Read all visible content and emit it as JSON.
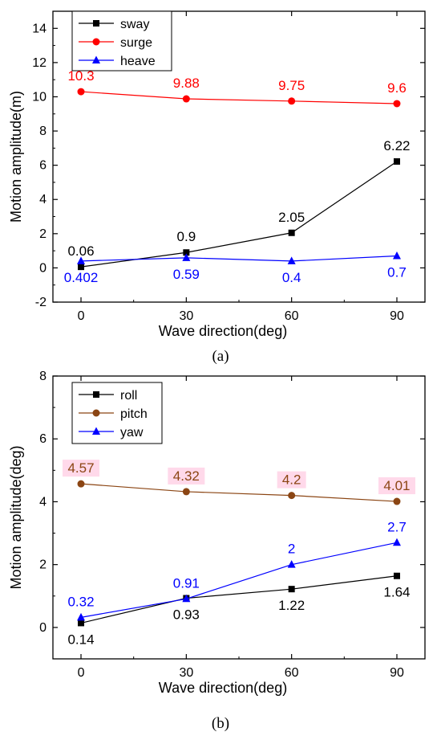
{
  "chart_data": [
    {
      "type": "line",
      "panel": "(a)",
      "xlabel": "Wave direction(deg)",
      "ylabel": "Motion amplitude(m)",
      "x": [
        0,
        30,
        60,
        90
      ],
      "xlim": [
        -8,
        98
      ],
      "ylim": [
        -2,
        15
      ],
      "xticks": [
        0,
        30,
        60,
        90
      ],
      "yticks": [
        -2,
        0,
        2,
        4,
        6,
        8,
        10,
        12,
        14
      ],
      "legend_position": "top-left",
      "series": [
        {
          "name": "sway",
          "values": [
            0.06,
            0.9,
            2.05,
            6.22
          ],
          "labels": [
            "0.06",
            "0.9",
            "2.05",
            "6.22"
          ],
          "color": "#000000",
          "marker": "square",
          "label_side": "above"
        },
        {
          "name": "surge",
          "values": [
            10.3,
            9.88,
            9.75,
            9.6
          ],
          "labels": [
            "10.3",
            "9.88",
            "9.75",
            "9.6"
          ],
          "color": "#ff0000",
          "marker": "circle",
          "label_side": "above"
        },
        {
          "name": "heave",
          "values": [
            0.402,
            0.59,
            0.4,
            0.7
          ],
          "labels": [
            "0.402",
            "0.59",
            "0.4",
            "0.7"
          ],
          "color": "#0000ff",
          "marker": "triangle",
          "label_side": "below"
        }
      ]
    },
    {
      "type": "line",
      "panel": "(b)",
      "xlabel": "Wave direction(deg)",
      "ylabel": "Motion amplitude(deg)",
      "x": [
        0,
        30,
        60,
        90
      ],
      "xlim": [
        -8,
        98
      ],
      "ylim": [
        -1,
        8
      ],
      "xticks": [
        0,
        30,
        60,
        90
      ],
      "yticks": [
        0,
        2,
        4,
        6,
        8
      ],
      "legend_position": "top-left",
      "series": [
        {
          "name": "roll",
          "values": [
            0.14,
            0.93,
            1.22,
            1.64
          ],
          "labels": [
            "0.14",
            "0.93",
            "1.22",
            "1.64"
          ],
          "color": "#000000",
          "marker": "square",
          "label_side": "below"
        },
        {
          "name": "pitch",
          "values": [
            4.57,
            4.32,
            4.2,
            4.01
          ],
          "labels": [
            "4.57",
            "4.32",
            "4.2",
            "4.01"
          ],
          "color": "#8b4513",
          "marker": "circle",
          "label_side": "above",
          "label_highlight": "#ffd9ea"
        },
        {
          "name": "yaw",
          "values": [
            0.32,
            0.91,
            2.0,
            2.7
          ],
          "labels": [
            "0.32",
            "0.91",
            "2",
            "2.7"
          ],
          "color": "#0000ff",
          "marker": "triangle",
          "label_side": "above"
        }
      ]
    }
  ],
  "captions": {
    "a": "(a)",
    "b": "(b)"
  }
}
